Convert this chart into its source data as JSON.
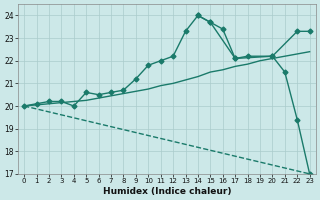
{
  "xlabel": "Humidex (Indice chaleur)",
  "bg_color": "#cce8e8",
  "grid_color": "#aacccc",
  "line_color": "#1a7a6a",
  "xlim": [
    -0.5,
    23.5
  ],
  "ylim": [
    17,
    24.5
  ],
  "yticks": [
    17,
    18,
    19,
    20,
    21,
    22,
    23,
    24
  ],
  "xticks": [
    0,
    1,
    2,
    3,
    4,
    5,
    6,
    7,
    8,
    9,
    10,
    11,
    12,
    13,
    14,
    15,
    16,
    17,
    18,
    19,
    20,
    21,
    22,
    23
  ],
  "lines": [
    {
      "x": [
        0,
        23
      ],
      "y": [
        20.0,
        17.0
      ],
      "marker": null,
      "linestyle": "--",
      "linewidth": 1.0
    },
    {
      "x": [
        0,
        1,
        2,
        3,
        4,
        5,
        6,
        7,
        8,
        9,
        10,
        11,
        12,
        13,
        14,
        15,
        16,
        17,
        18,
        19,
        20,
        21,
        22,
        23
      ],
      "y": [
        20.0,
        20.05,
        20.1,
        20.15,
        20.2,
        20.25,
        20.35,
        20.45,
        20.55,
        20.65,
        20.75,
        20.9,
        21.0,
        21.15,
        21.3,
        21.5,
        21.6,
        21.75,
        21.85,
        22.0,
        22.1,
        22.2,
        22.3,
        22.4
      ],
      "marker": null,
      "linestyle": "-",
      "linewidth": 1.0
    },
    {
      "x": [
        0,
        1,
        2,
        3,
        4,
        5,
        6,
        7,
        8,
        9,
        10,
        11,
        12,
        13,
        14,
        15,
        16,
        17,
        18,
        20,
        21,
        22,
        23
      ],
      "y": [
        20.0,
        20.1,
        20.2,
        20.2,
        20.0,
        20.6,
        20.5,
        20.6,
        20.7,
        21.2,
        21.8,
        22.0,
        22.2,
        23.3,
        24.0,
        23.7,
        23.4,
        22.1,
        22.2,
        22.2,
        21.5,
        19.4,
        17.0
      ],
      "marker": "D",
      "linestyle": "-",
      "linewidth": 1.0
    },
    {
      "x": [
        14,
        15,
        17,
        20,
        22,
        23
      ],
      "y": [
        24.0,
        23.7,
        22.1,
        22.2,
        23.3,
        23.3
      ],
      "marker": "D",
      "linestyle": "-",
      "linewidth": 1.0
    }
  ]
}
